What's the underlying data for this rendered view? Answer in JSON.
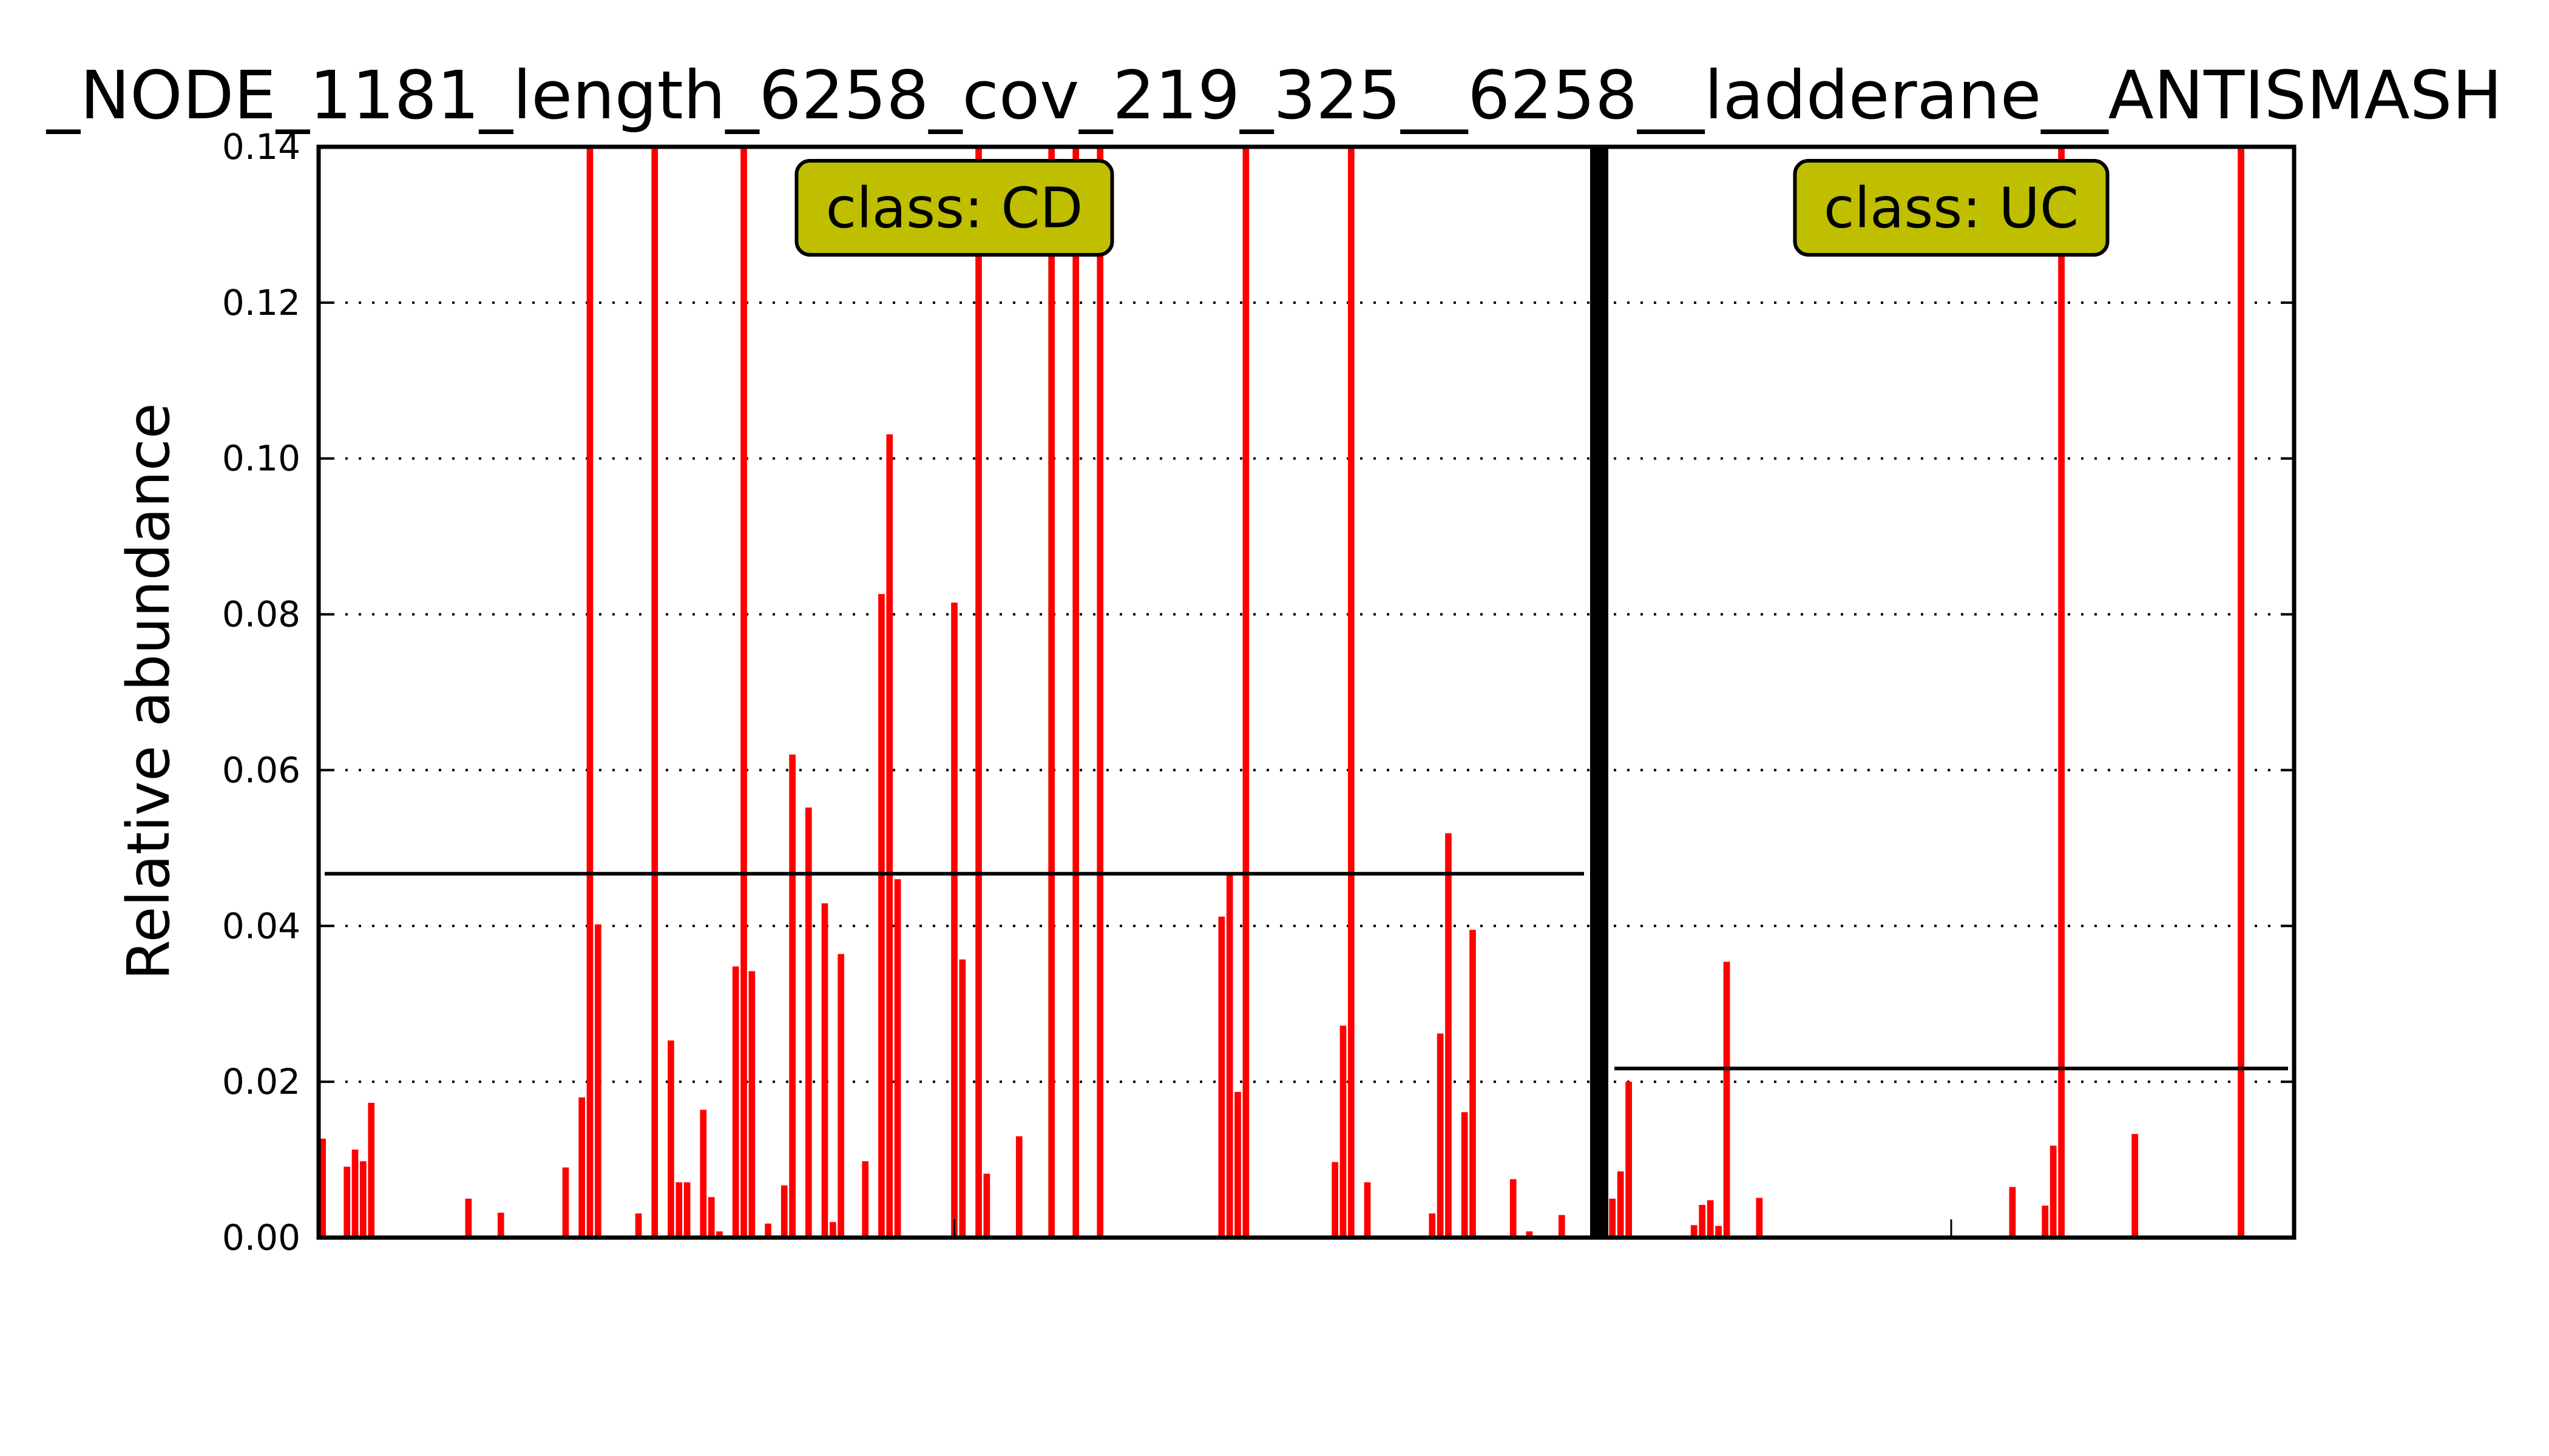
{
  "chart_data": {
    "type": "bar",
    "title": "_NODE_1181_length_6258_cov_219_325__6258__ladderane__ANTISMASH",
    "xlabel": "",
    "ylabel": "Relative abundance",
    "ylim": [
      0,
      0.14
    ],
    "yticks": [
      "0.00",
      "0.02",
      "0.04",
      "0.06",
      "0.08",
      "0.10",
      "0.12",
      "0.14"
    ],
    "grid": "horizontal dotted",
    "bar_color": "#ff0000",
    "box_color": "#bfbf00",
    "panels": [
      {
        "label": "class: CD",
        "mean_line": 0.0467,
        "x_range": [
          0,
          157
        ],
        "values": [
          0.0127,
          0,
          0,
          0.0091,
          0.0113,
          0.0098,
          0.0173,
          0,
          0,
          0,
          0,
          0,
          0,
          0,
          0,
          0,
          0,
          0,
          0.005,
          0,
          0,
          0,
          0.0032,
          0,
          0,
          0,
          0,
          0,
          0,
          0,
          0.009,
          0,
          0.018,
          0.14,
          0.0402,
          0,
          0,
          0,
          0,
          0.0031,
          0,
          0.14,
          0,
          0.0253,
          0.0071,
          0.0071,
          0,
          0.0164,
          0.0052,
          0.0008,
          0,
          0.0348,
          0.14,
          0.0342,
          0,
          0.0018,
          0,
          0.0067,
          0.062,
          0,
          0.0552,
          0,
          0.0429,
          0.002,
          0.0364,
          0,
          0,
          0.0098,
          0,
          0.0826,
          0.1031,
          0.046,
          0,
          0,
          0,
          0,
          0,
          0,
          0.0815,
          0.0357,
          0,
          0.14,
          0.0082,
          0,
          0,
          0,
          0.013,
          0,
          0,
          0,
          0.14,
          0,
          0,
          0.14,
          0,
          0,
          0.14,
          0,
          0,
          0,
          0,
          0,
          0,
          0,
          0,
          0,
          0,
          0,
          0,
          0,
          0,
          0.0412,
          0.0469,
          0.0187,
          0.14,
          0,
          0,
          0,
          0,
          0,
          0,
          0,
          0,
          0,
          0,
          0.0097,
          0.0272,
          0.14,
          0,
          0.0071,
          0,
          0,
          0,
          0,
          0,
          0,
          0,
          0.0031,
          0.0262,
          0.0519,
          0,
          0.0161,
          0.0395,
          0,
          0,
          0,
          0,
          0.0075,
          0,
          0.0008,
          0,
          0,
          0,
          0.0029,
          0,
          0,
          0,
          0,
          0,
          0,
          0,
          0,
          0,
          0,
          0,
          0,
          0,
          0,
          0
        ]
      },
      {
        "label": "class: UC",
        "mean_line": 0.0217,
        "x_range": [
          0,
          84
        ],
        "values": [
          0.005,
          0.0085,
          0.02,
          0,
          0,
          0,
          0,
          0,
          0,
          0,
          0.0016,
          0.0042,
          0.0048,
          0.0015,
          0.0354,
          0,
          0,
          0,
          0.0051,
          0,
          0,
          0,
          0,
          0,
          0,
          0,
          0,
          0,
          0,
          0,
          0,
          0,
          0,
          0,
          0,
          0,
          0,
          0,
          0,
          0,
          0,
          0,
          0,
          0,
          0,
          0,
          0,
          0,
          0,
          0.0065,
          0,
          0,
          0,
          0.0041,
          0.0118,
          0.14,
          0,
          0,
          0,
          0,
          0,
          0,
          0,
          0,
          0.0133,
          0,
          0,
          0,
          0,
          0,
          0,
          0,
          0,
          0,
          0,
          0,
          0,
          0.14,
          0,
          0,
          0,
          0,
          0,
          0
        ]
      }
    ]
  }
}
